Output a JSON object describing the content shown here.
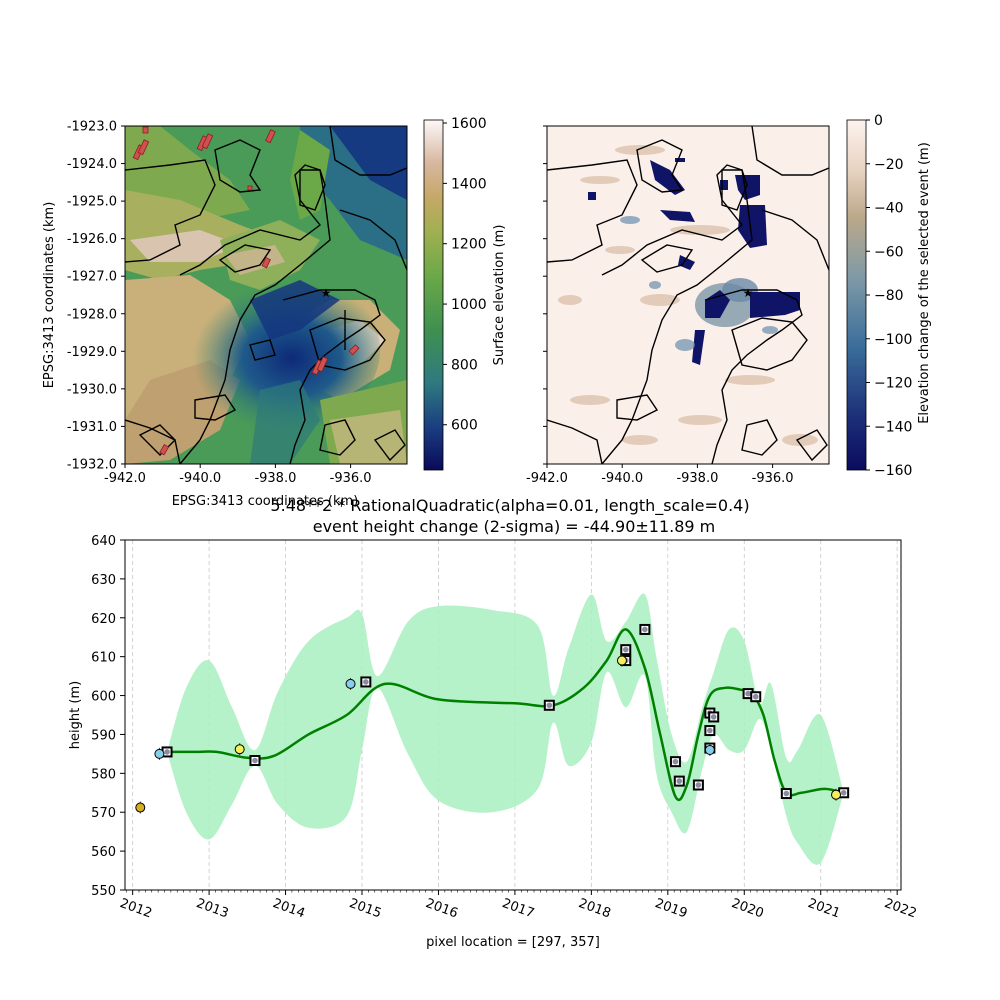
{
  "map_left": {
    "ylabel": "EPSG:3413 coordinates (km)",
    "xlabel": "EPSG:3413 coordinates (km)",
    "x_ticks": [
      "-942.0",
      "-940.0",
      "-938.0",
      "-936.0"
    ],
    "y_ticks": [
      "-1923.0",
      "-1924.0",
      "-1925.0",
      "-1926.0",
      "-1927.0",
      "-1928.0",
      "-1929.0",
      "-1930.0",
      "-1931.0",
      "-1932.0"
    ],
    "colorbar_label": "Surface elevation (m)",
    "colorbar_ticks": [
      "1600",
      "1400",
      "1200",
      "1000",
      "800",
      "600"
    ],
    "colorbar_range": [
      450,
      1610
    ],
    "colormap": "gist_earth-like (navy → green → tan → white)"
  },
  "map_right": {
    "x_ticks": [
      "-942.0",
      "-940.0",
      "-938.0",
      "-936.0"
    ],
    "colorbar_label": "Elevation change of the selected event (m)",
    "colorbar_ticks": [
      "0",
      "−20",
      "−40",
      "−60",
      "−80",
      "−100",
      "−120",
      "−140",
      "−160"
    ],
    "colorbar_range": [
      -160,
      0
    ],
    "colormap": "navy → steel blue → tan → white"
  },
  "chart_data": {
    "type": "line",
    "title_line1": "5.48**2 * RationalQuadratic(alpha=0.01, length_scale=0.4)",
    "title_line2": "event height change (2-sigma) = -44.90±11.89 m",
    "xlabel": "pixel location = [297, 357]",
    "ylabel": "height (m)",
    "xlim": [
      2011.9,
      2022.05
    ],
    "ylim": [
      550,
      640
    ],
    "y_ticks": [
      "550",
      "560",
      "570",
      "580",
      "590",
      "600",
      "610",
      "620",
      "630",
      "640"
    ],
    "x_ticks": [
      "2012",
      "2013",
      "2014",
      "2015",
      "2016",
      "2017",
      "2018",
      "2019",
      "2020",
      "2021",
      "2022"
    ],
    "grid": "vertical dashed at years",
    "series": [
      {
        "color": "#008000",
        "x": [
          2012.45,
          2012.8,
          2013.1,
          2013.5,
          2013.85,
          2014.3,
          2014.8,
          2015.3,
          2016.0,
          2017.0,
          2017.5,
          2017.9,
          2018.2,
          2018.45,
          2018.7,
          2018.9,
          2019.1,
          2019.25,
          2019.4,
          2019.55,
          2019.75,
          2019.95,
          2020.1,
          2020.25,
          2020.4,
          2020.55,
          2020.75,
          2021.05,
          2021.3
        ],
        "y": [
          585.5,
          585.5,
          585.5,
          584.0,
          584.5,
          590.0,
          595.0,
          603.0,
          599.0,
          598.0,
          597.5,
          602.0,
          609.0,
          617.0,
          607.0,
          590.0,
          574.0,
          577.0,
          590.0,
          600.0,
          602.0,
          601.5,
          600.5,
          595.0,
          583.0,
          575.0,
          575.0,
          576.0,
          575.0
        ]
      }
    ],
    "confidence_band": {
      "color": "#a8f0c0",
      "x": [
        2012.45,
        2012.7,
        2013.0,
        2013.3,
        2013.6,
        2013.9,
        2014.3,
        2014.8,
        2015.0,
        2015.2,
        2015.6,
        2016.0,
        2016.7,
        2017.3,
        2017.5,
        2017.7,
        2018.0,
        2018.2,
        2018.45,
        2018.7,
        2018.85,
        2019.05,
        2019.25,
        2019.45,
        2019.6,
        2019.8,
        2020.0,
        2020.2,
        2020.35,
        2020.55,
        2020.7,
        2021.0,
        2021.3
      ],
      "upper": [
        585.5,
        602.0,
        609.0,
        597.0,
        586.0,
        601.0,
        614.0,
        620.0,
        621.0,
        605.0,
        619.0,
        623.0,
        622.0,
        618.0,
        600.0,
        612.0,
        626.0,
        614.0,
        619.0,
        626.0,
        610.0,
        590.0,
        583.0,
        597.0,
        606.0,
        617.0,
        614.0,
        598.0,
        603.0,
        584.0,
        586.0,
        595.0,
        575.0
      ],
      "lower": [
        585.5,
        570.0,
        563.0,
        572.0,
        582.0,
        572.0,
        566.0,
        569.0,
        586.0,
        602.0,
        585.0,
        573.0,
        570.0,
        576.0,
        593.0,
        582.0,
        588.0,
        606.0,
        597.0,
        605.0,
        580.0,
        570.0,
        565.0,
        581.0,
        590.0,
        586.0,
        586.0,
        594.0,
        586.0,
        569.0,
        562.0,
        557.0,
        575.0
      ]
    },
    "square_points": [
      {
        "x": 2012.45,
        "y": 585.5
      },
      {
        "x": 2013.6,
        "y": 583.3
      },
      {
        "x": 2015.05,
        "y": 603.5
      },
      {
        "x": 2017.45,
        "y": 597.5
      },
      {
        "x": 2018.45,
        "y": 611.8
      },
      {
        "x": 2018.45,
        "y": 609.0
      },
      {
        "x": 2018.7,
        "y": 617.0
      },
      {
        "x": 2019.1,
        "y": 583.0
      },
      {
        "x": 2019.15,
        "y": 578.0
      },
      {
        "x": 2019.4,
        "y": 577.0
      },
      {
        "x": 2019.55,
        "y": 595.5
      },
      {
        "x": 2019.55,
        "y": 591.0
      },
      {
        "x": 2019.55,
        "y": 586.5
      },
      {
        "x": 2019.6,
        "y": 594.5
      },
      {
        "x": 2020.05,
        "y": 600.5
      },
      {
        "x": 2020.15,
        "y": 599.7
      },
      {
        "x": 2020.55,
        "y": 574.8
      },
      {
        "x": 2021.3,
        "y": 575.0
      }
    ],
    "circle_points": [
      {
        "x": 2012.1,
        "y": 571.2,
        "color": "#d4b020"
      },
      {
        "x": 2012.35,
        "y": 585.0,
        "color": "#87ceeb"
      },
      {
        "x": 2013.4,
        "y": 586.2,
        "color": "#f5f05a"
      },
      {
        "x": 2014.85,
        "y": 603.0,
        "color": "#87ceeb"
      },
      {
        "x": 2018.4,
        "y": 609.0,
        "color": "#f5f05a"
      },
      {
        "x": 2019.55,
        "y": 586.0,
        "color": "#87ceeb"
      },
      {
        "x": 2021.2,
        "y": 574.5,
        "color": "#f5f05a"
      }
    ]
  }
}
